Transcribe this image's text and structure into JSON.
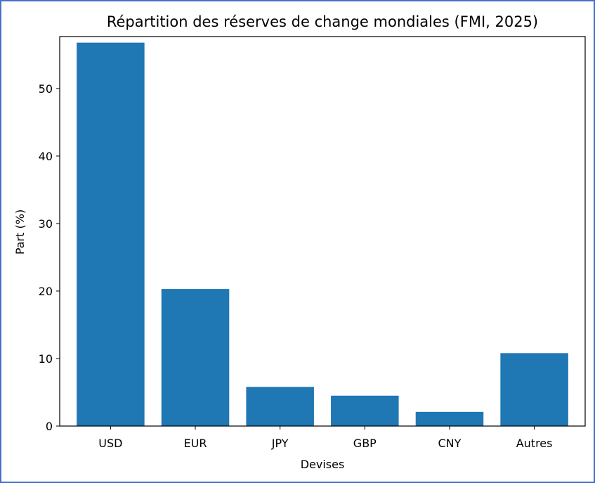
{
  "chart_data": {
    "type": "bar",
    "title": "Répartition des réserves de change mondiales (FMI, 2025)",
    "xlabel": "Devises",
    "ylabel": "Part (%)",
    "categories": [
      "USD",
      "EUR",
      "JPY",
      "GBP",
      "CNY",
      "Autres"
    ],
    "values": [
      56.8,
      20.3,
      5.8,
      4.5,
      2.1,
      10.8
    ],
    "ylim": [
      0,
      57.7
    ],
    "yticks": [
      0,
      10,
      20,
      30,
      40,
      50
    ],
    "bar_color": "#1f77b4",
    "grid": false,
    "legend": false
  },
  "frame": {
    "border_color": "#4472c4"
  }
}
